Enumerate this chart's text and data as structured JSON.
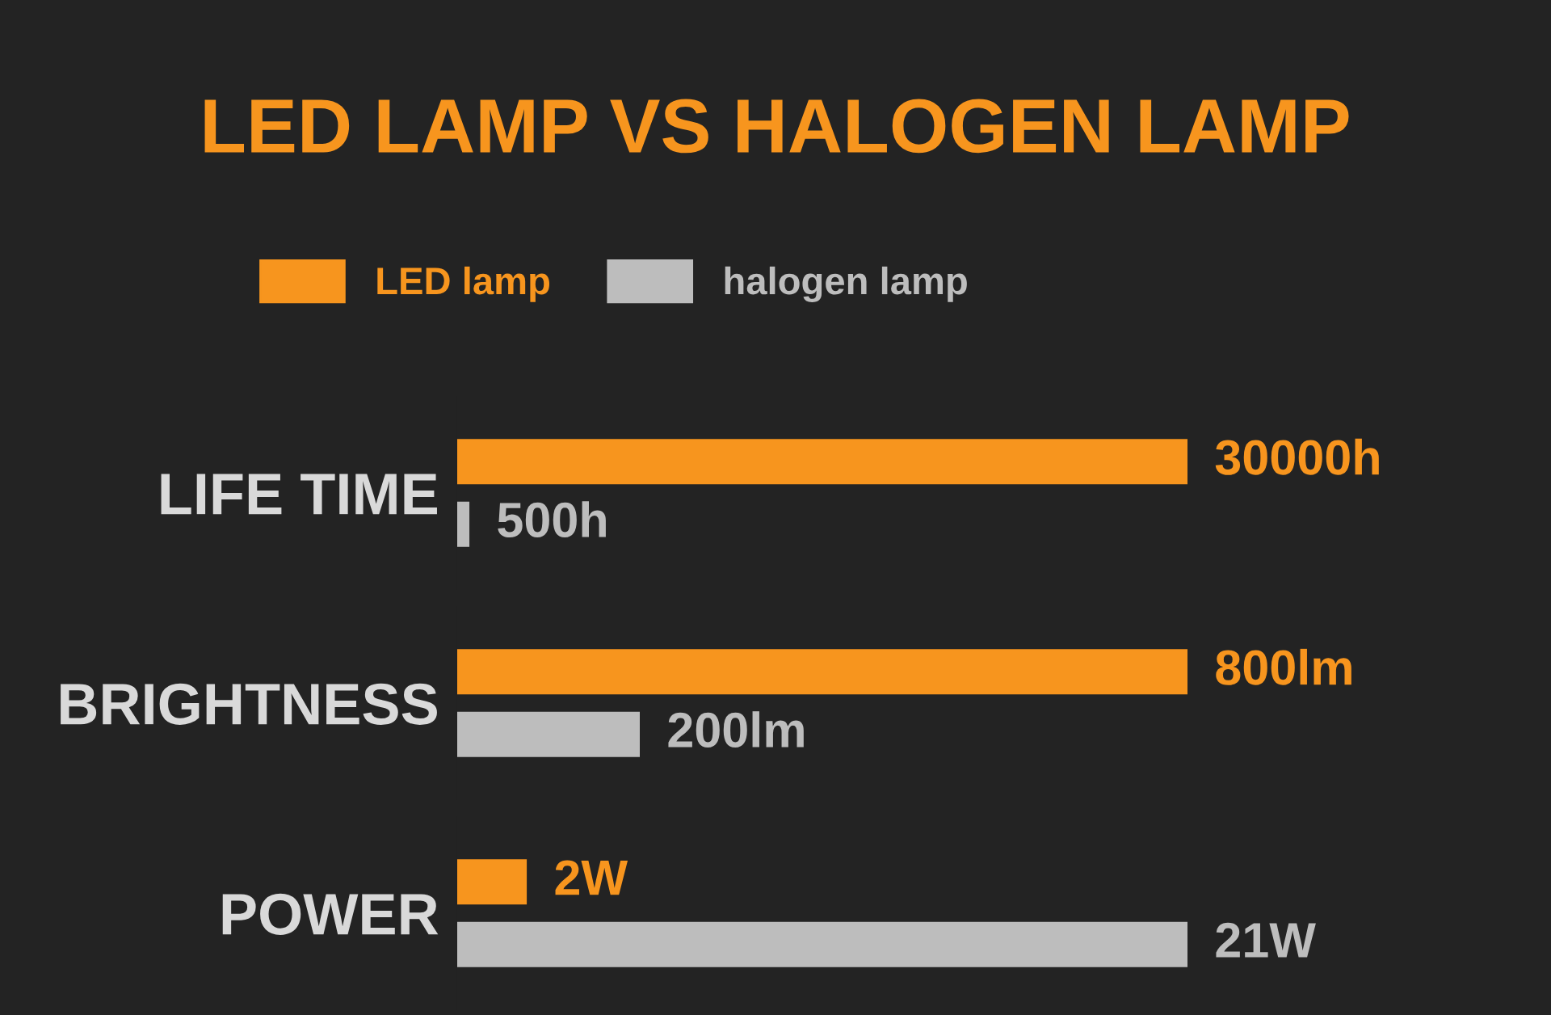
{
  "chart_data": [
    {
      "type": "bar",
      "orientation": "horizontal",
      "title": "LED LAMP VS HALOGEN LAMP",
      "legend": "top left",
      "categories": [
        "LIFE TIME"
      ],
      "series": [
        {
          "name": "LED lamp",
          "color": "#f7951e",
          "values": [
            30000
          ],
          "value_labels": [
            "30000h"
          ]
        },
        {
          "name": "halogen lamp",
          "color": "#bdbdbd",
          "values": [
            500
          ],
          "value_labels": [
            "500h"
          ]
        }
      ]
    },
    {
      "type": "bar",
      "orientation": "horizontal",
      "categories": [
        "BRIGHTNESS"
      ],
      "series": [
        {
          "color": "#f7951e",
          "values": [
            800
          ],
          "value_labels": [
            "800lm"
          ]
        },
        {
          "color": "#bdbdbd",
          "values": [
            200
          ],
          "value_labels": [
            "200lm"
          ]
        }
      ]
    },
    {
      "type": "bar",
      "orientation": "horizontal",
      "categories": [
        "POWER"
      ],
      "series": [
        {
          "color": "#f7951e",
          "values": [
            2
          ],
          "value_labels": [
            "2W"
          ]
        },
        {
          "color": "#bdbdbd",
          "values": [
            21
          ],
          "value_labels": [
            "21W"
          ]
        }
      ]
    }
  ]
}
